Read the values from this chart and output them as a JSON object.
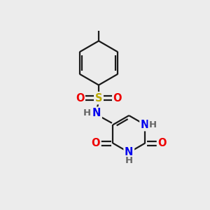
{
  "background_color": "#ececec",
  "bond_color": "#1a1a1a",
  "atom_colors": {
    "C": "#1a1a1a",
    "N": "#0000ee",
    "O": "#ee0000",
    "S": "#bbaa00",
    "H": "#666666"
  },
  "fs": 10.5,
  "lw": 1.6
}
